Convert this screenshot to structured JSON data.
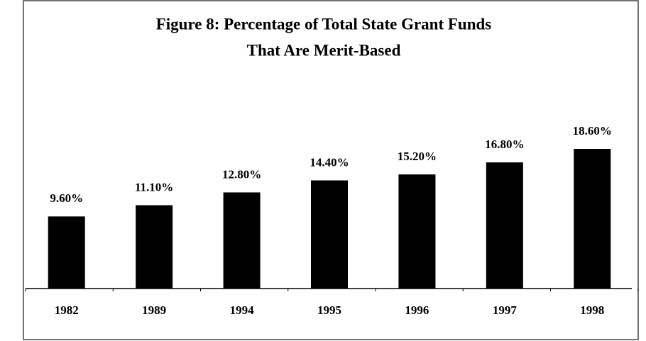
{
  "chart_data": {
    "type": "bar",
    "title": [
      "Figure 8: Percentage of Total State Grant Funds",
      "That Are Merit-Based"
    ],
    "categories": [
      "1982",
      "1989",
      "1994",
      "1995",
      "1996",
      "1997",
      "1998"
    ],
    "values": [
      9.6,
      11.1,
      12.8,
      14.4,
      15.2,
      16.8,
      18.6
    ],
    "value_labels": [
      "9.60%",
      "11.10%",
      "12.80%",
      "14.40%",
      "15.20%",
      "16.80%",
      "18.60%"
    ],
    "color": "#000000"
  }
}
